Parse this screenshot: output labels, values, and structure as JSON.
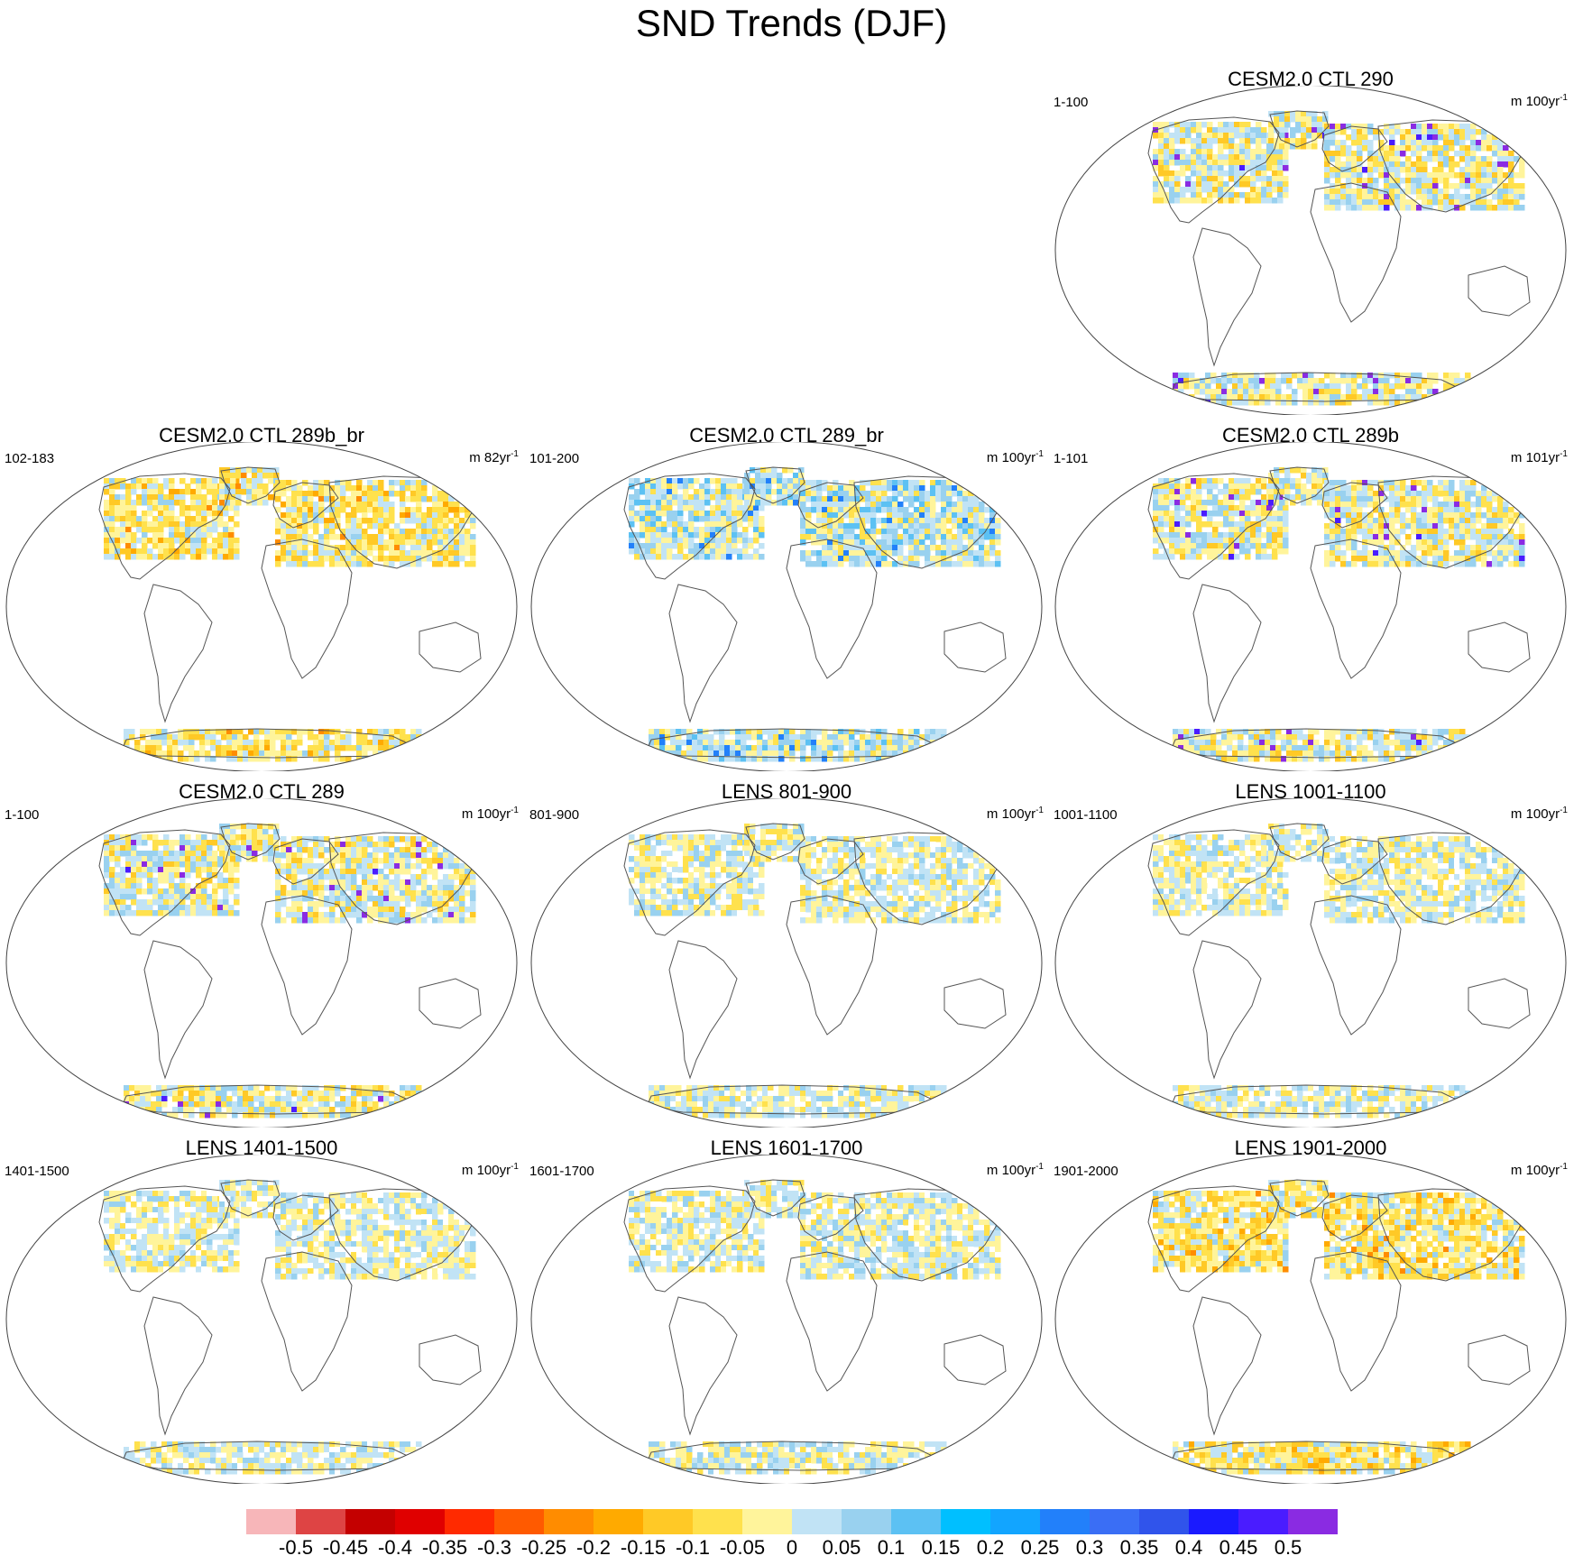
{
  "title": "SND Trends (DJF)",
  "panels": [
    {
      "title": "CESM2.0 CTL 290",
      "period": "1-100",
      "unit": "m 100yr",
      "unit_exp": "-1",
      "palette": "strong_pos"
    },
    {
      "title": "CESM2.0 CTL 289b_br",
      "period": "102-183",
      "unit": "m 82yr",
      "unit_exp": "-1",
      "palette": "warm_mix"
    },
    {
      "title": "CESM2.0 CTL 289_br",
      "period": "101-200",
      "unit": "m 100yr",
      "unit_exp": "-1",
      "palette": "cool_mix"
    },
    {
      "title": "CESM2.0 CTL 289b",
      "period": "1-101",
      "unit": "m 101yr",
      "unit_exp": "-1",
      "palette": "strong_pos"
    },
    {
      "title": "CESM2.0 CTL 289",
      "period": "1-100",
      "unit": "m 100yr",
      "unit_exp": "-1",
      "palette": "strong_pos"
    },
    {
      "title": "LENS 801-900",
      "period": "801-900",
      "unit": "m 100yr",
      "unit_exp": "-1",
      "palette": "mild"
    },
    {
      "title": "LENS 1001-1100",
      "period": "1001-1100",
      "unit": "m 100yr",
      "unit_exp": "-1",
      "palette": "mild"
    },
    {
      "title": "LENS 1401-1500",
      "period": "1401-1500",
      "unit": "m 100yr",
      "unit_exp": "-1",
      "palette": "mild"
    },
    {
      "title": "LENS 1601-1700",
      "period": "1601-1700",
      "unit": "m 100yr",
      "unit_exp": "-1",
      "palette": "mild"
    },
    {
      "title": "LENS 1901-2000",
      "period": "1901-2000",
      "unit": "m 100yr",
      "unit_exp": "-1",
      "palette": "warm_mix"
    }
  ],
  "colorbar": {
    "colors": [
      "#f7b6b9",
      "#de4444",
      "#c40000",
      "#e00000",
      "#ff2a00",
      "#ff5a00",
      "#ff8c00",
      "#ffaa00",
      "#ffc926",
      "#ffe14d",
      "#fff49b",
      "#c1e3f5",
      "#99d1ef",
      "#5cc1f3",
      "#00bfff",
      "#12a5ff",
      "#2280fa",
      "#3a6ef5",
      "#3054eb",
      "#1a1aff",
      "#4a1cff",
      "#8a2be2"
    ],
    "labels": [
      "-0.5",
      "-0.45",
      "-0.4",
      "-0.35",
      "-0.3",
      "-0.25",
      "-0.2",
      "-0.15",
      "-0.1",
      "-0.05",
      "0",
      "0.05",
      "0.1",
      "0.15",
      "0.2",
      "0.25",
      "0.3",
      "0.35",
      "0.4",
      "0.45",
      "0.5"
    ]
  }
}
